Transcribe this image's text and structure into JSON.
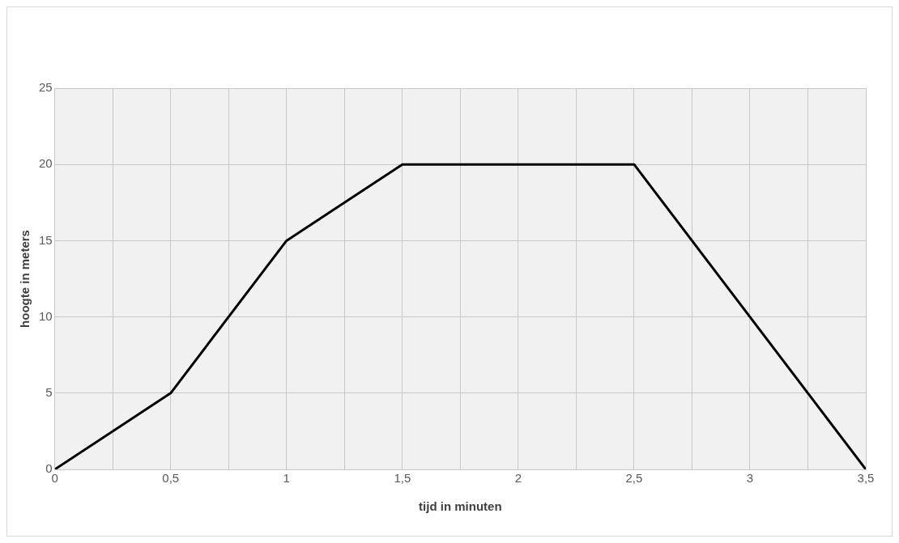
{
  "chart_data": {
    "type": "line",
    "xlabel": "tijd in minuten",
    "ylabel": "hoogte in meters",
    "x": [
      0,
      0.5,
      1,
      1.5,
      2.5,
      3.5
    ],
    "series": [
      {
        "color": "#000000",
        "values": [
          0,
          5,
          15,
          20,
          20,
          0
        ]
      }
    ],
    "xlim": [
      0,
      3.5
    ],
    "xticks": [
      0,
      {
        "value": 0.25,
        "label": null
      },
      {
        "value": 0.5,
        "label": "0,5"
      },
      {
        "value": 0.75,
        "label": null
      },
      1,
      {
        "value": 1.25,
        "label": null
      },
      {
        "value": 1.5,
        "label": "1,5"
      },
      {
        "value": 1.75,
        "label": null
      },
      2,
      {
        "value": 2.25,
        "label": null
      },
      {
        "value": 2.5,
        "label": "2,5"
      },
      {
        "value": 2.75,
        "label": null
      },
      3,
      {
        "value": 3.25,
        "label": null
      },
      {
        "value": 3.5,
        "label": "3,5"
      }
    ],
    "ylim": [
      0,
      25
    ],
    "yticks": [
      0,
      5,
      10,
      15,
      20,
      25
    ],
    "grid": true,
    "legend": false,
    "marker": "none",
    "line_style": "solid"
  }
}
